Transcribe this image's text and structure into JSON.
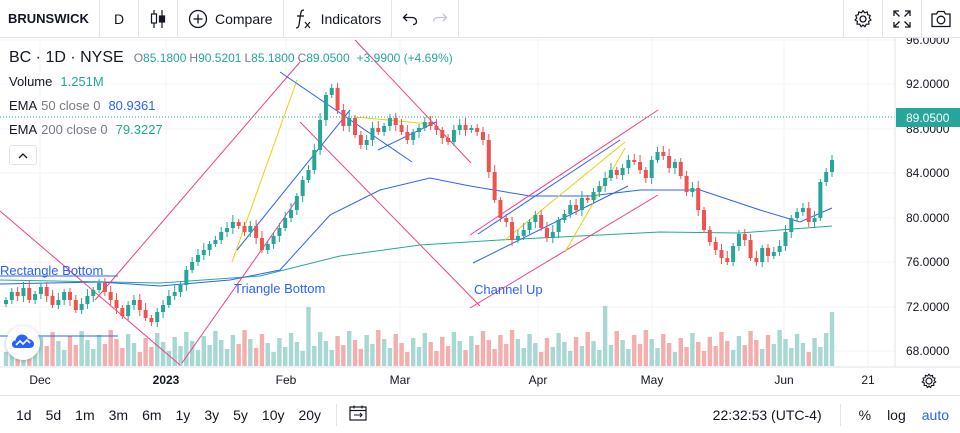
{
  "toolbar": {
    "symbol": "BRUNSWICK",
    "interval": "D",
    "compare_label": "Compare",
    "indicators_label": "Indicators"
  },
  "legend": {
    "title": "BC · 1D · NYSE",
    "ohlc": [
      {
        "key": "O",
        "value": "85.1800"
      },
      {
        "key": "H",
        "value": "90.5201"
      },
      {
        "key": "L",
        "value": "85.1800"
      },
      {
        "key": "C",
        "value": "89.0500"
      }
    ],
    "change": "+3.9900 (+4.69%)",
    "volume_label": "Volume",
    "volume_value": "1.251M",
    "ema50_label": "EMA",
    "ema50_params": "50 close 0",
    "ema50_value": "80.9361",
    "ema200_label": "EMA",
    "ema200_params": "200 close 0",
    "ema200_value": "79.3227"
  },
  "price_axis": {
    "ticks": [
      "96.0000",
      "92.0000",
      "88.0000",
      "84.0000",
      "80.0000",
      "76.0000",
      "72.0000",
      "68.0000"
    ],
    "last_price": "89.0500"
  },
  "time_axis": {
    "ticks": [
      {
        "label": "Dec",
        "bold": false
      },
      {
        "label": "2023",
        "bold": true
      },
      {
        "label": "Feb",
        "bold": false
      },
      {
        "label": "Mar",
        "bold": false
      },
      {
        "label": "Apr",
        "bold": false
      },
      {
        "label": "May",
        "bold": false
      },
      {
        "label": "Jun",
        "bold": false
      },
      {
        "label": "21",
        "bold": false
      }
    ]
  },
  "drawings": {
    "rectangle_bottom": "Rectangle Bottom",
    "triangle_bottom": "Triangle Bottom",
    "channel_up": "Channel Up"
  },
  "ranges": [
    "1d",
    "5d",
    "1m",
    "3m",
    "6m",
    "1y",
    "3y",
    "5y",
    "10y",
    "20y"
  ],
  "status": {
    "clock": "22:32:53 (UTC-4)",
    "percent": "%",
    "log": "log",
    "auto": "auto"
  },
  "colors": {
    "up": "#26a69a",
    "down": "#ef5350",
    "ema50": "#2962ff",
    "ema200": "#22ab94",
    "pattern": "#f23f88",
    "accent": "#2962ff"
  }
}
